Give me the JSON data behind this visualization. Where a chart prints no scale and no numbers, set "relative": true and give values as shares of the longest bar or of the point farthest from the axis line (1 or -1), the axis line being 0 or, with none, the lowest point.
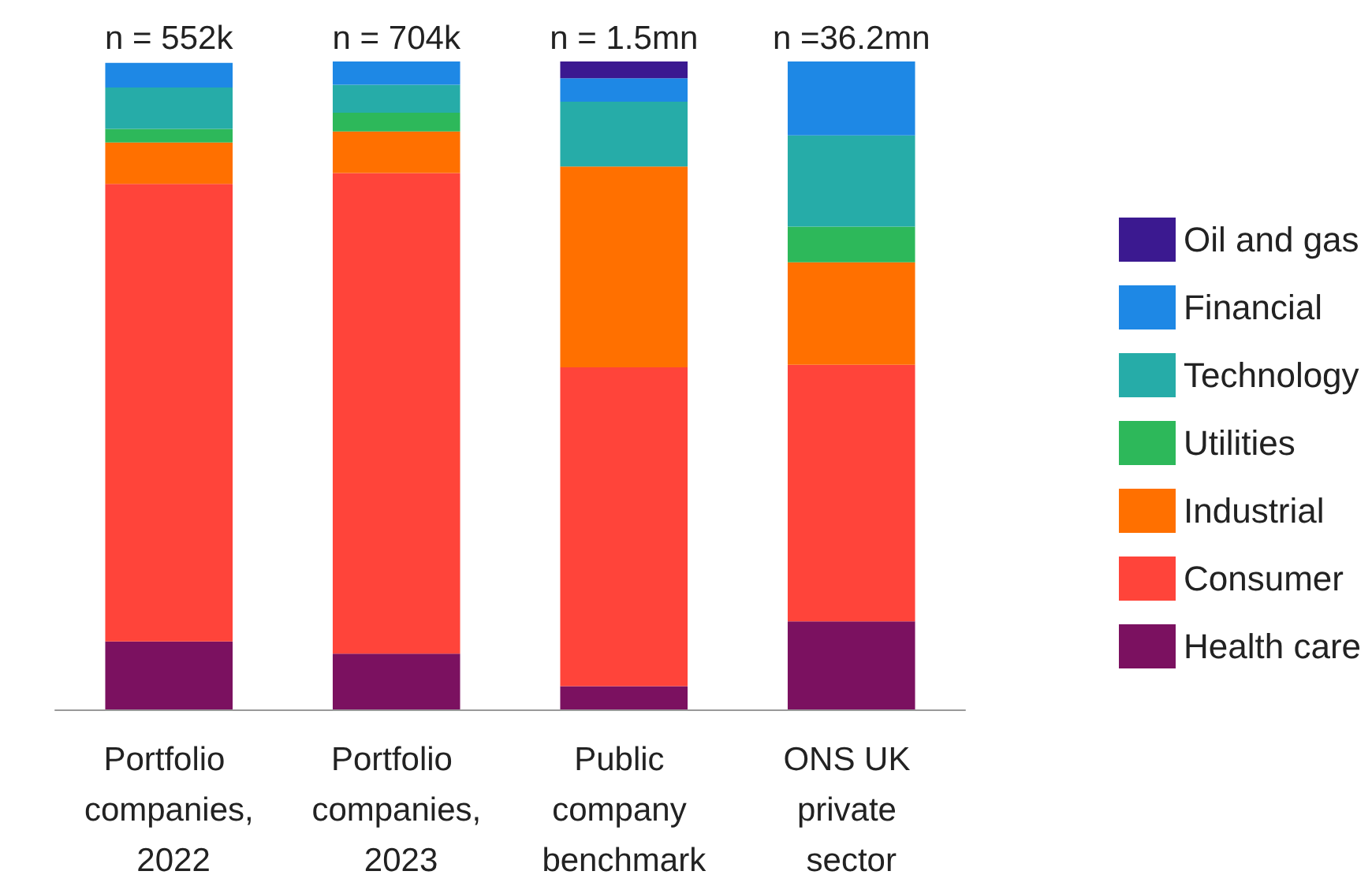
{
  "chart_data": {
    "type": "bar",
    "stacked": true,
    "relative": true,
    "legend": "right",
    "categories": [
      "Portfolio companies, 2022",
      "Portfolio companies, 2023",
      "Public company benchmark",
      "ONS UK private sector"
    ],
    "annotations": [
      {
        "text": "n = 552k",
        "x": "Portfolio companies, 2022",
        "y": 1
      },
      {
        "text": "n = 704k",
        "x": "Portfolio companies, 2023",
        "y": 1
      },
      {
        "text": "n = 1.5mn",
        "x": "Public company benchmark",
        "y": 1
      },
      {
        "text": "n =36.2mn",
        "x": "ONS UK private sector",
        "y": 1
      }
    ],
    "series": [
      {
        "name": "Health care",
        "color": "#7b1160",
        "values": [
          0.105,
          0.086,
          0.036,
          0.136
        ]
      },
      {
        "name": "Consumer",
        "color": "#ff443a",
        "values": [
          0.706,
          0.742,
          0.492,
          0.396
        ]
      },
      {
        "name": "Industrial",
        "color": "#ff7000",
        "values": [
          0.064,
          0.064,
          0.31,
          0.158
        ]
      },
      {
        "name": "Utilities",
        "color": "#2db85a",
        "values": [
          0.021,
          0.029,
          0,
          0.055
        ]
      },
      {
        "name": "Technology",
        "color": "#26aca8",
        "values": [
          0.064,
          0.043,
          0.1,
          0.141
        ]
      },
      {
        "name": "Financial",
        "color": "#1e88e5",
        "values": [
          0.038,
          0.036,
          0.036,
          0.114
        ]
      },
      {
        "name": "Oil and gas",
        "color": "#3b1990",
        "values": [
          0,
          0,
          0.026,
          0
        ]
      }
    ]
  }
}
